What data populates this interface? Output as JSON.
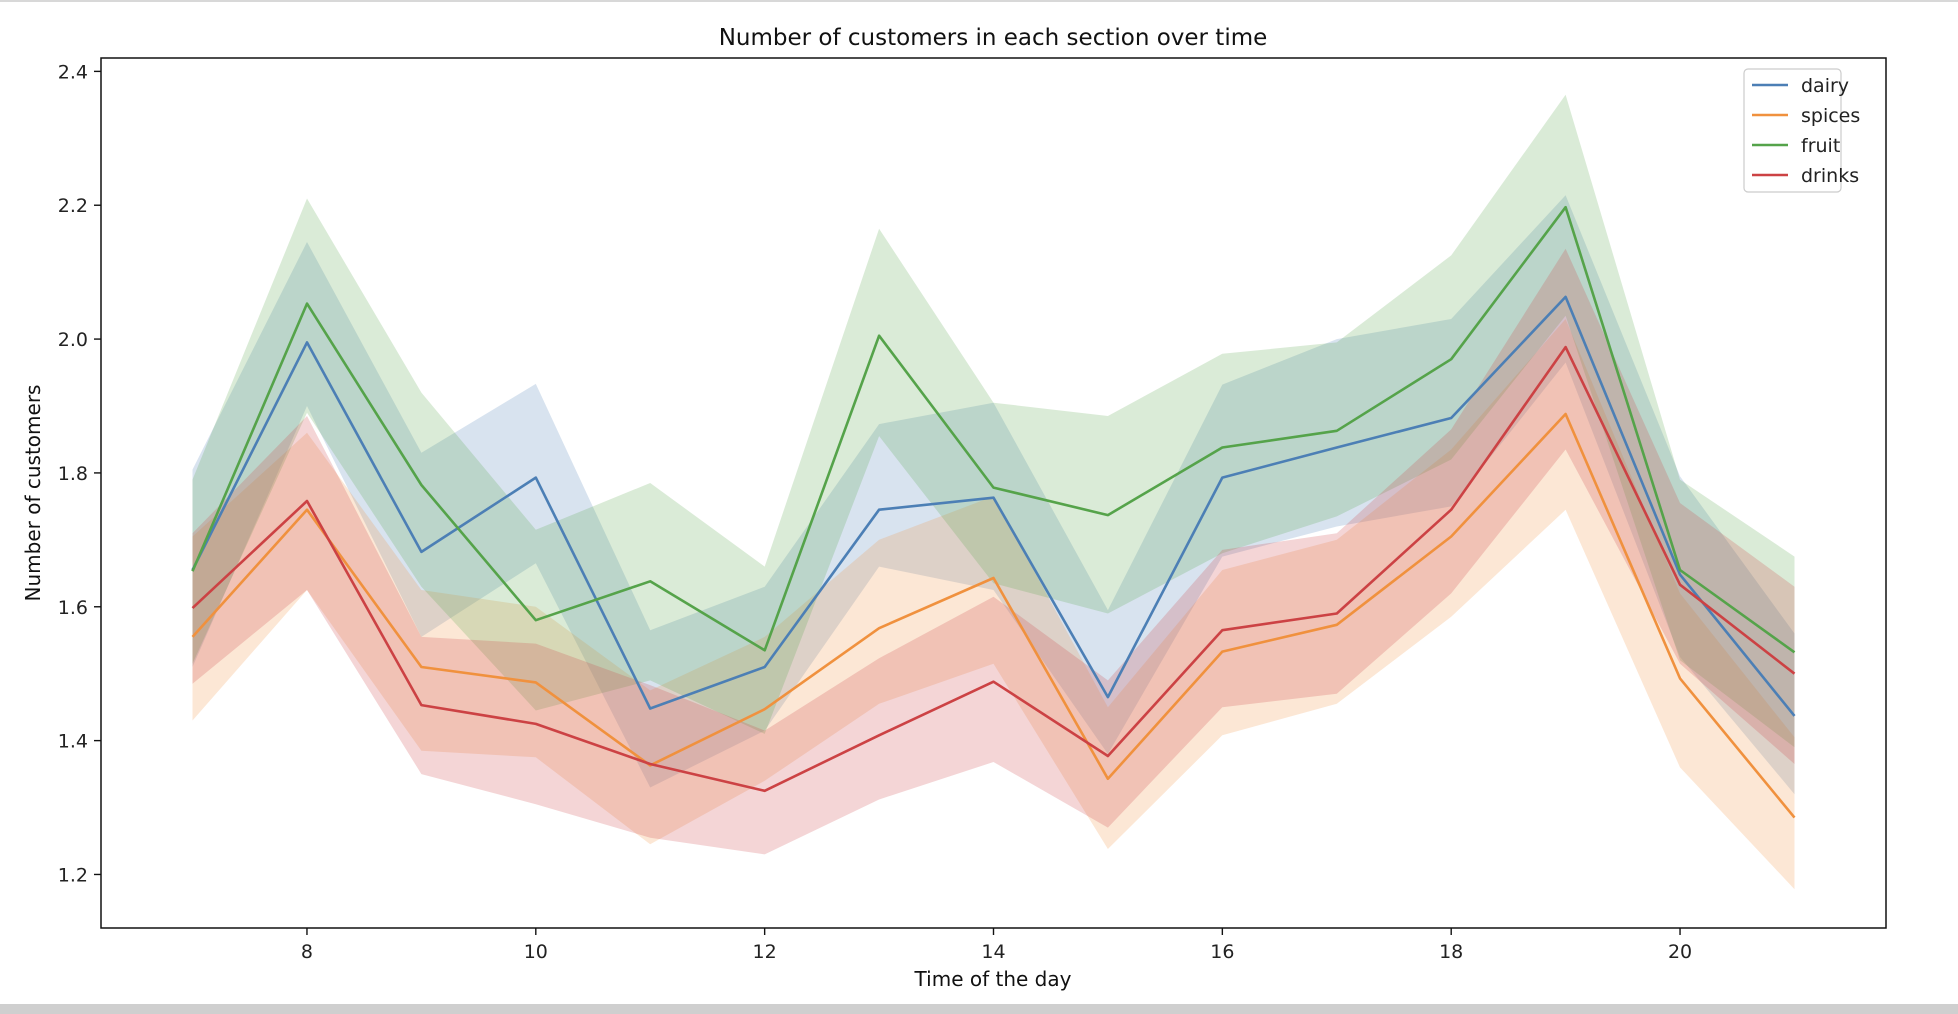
{
  "chart_data": {
    "type": "line",
    "title": "Number of customers in each section over time",
    "xlabel": "Time of the day",
    "ylabel": "Number of customers",
    "xlim": [
      6.2,
      21.8
    ],
    "ylim": [
      1.12,
      2.42
    ],
    "xticks": [
      8,
      10,
      12,
      14,
      16,
      18,
      20
    ],
    "yticks": [
      1.2,
      1.4,
      1.6,
      1.8,
      2.0,
      2.2,
      2.4
    ],
    "ytick_labels": [
      "1.2",
      "1.4",
      "1.6",
      "1.8",
      "2.0",
      "2.2",
      "2.4"
    ],
    "grid": false,
    "legend_position": "top-right",
    "x": [
      7,
      8,
      9,
      10,
      11,
      12,
      13,
      14,
      15,
      16,
      17,
      18,
      19,
      20,
      21
    ],
    "series": [
      {
        "name": "dairy",
        "color": "#4c7fb5",
        "values": [
          1.655,
          1.995,
          1.682,
          1.793,
          1.448,
          1.51,
          1.745,
          1.763,
          1.465,
          1.793,
          1.838,
          1.882,
          2.063,
          1.648,
          1.437
        ],
        "upper": [
          1.805,
          2.145,
          1.83,
          1.933,
          1.565,
          1.63,
          1.873,
          1.905,
          1.595,
          1.932,
          2.0,
          2.03,
          2.215,
          1.795,
          1.56
        ],
        "lower": [
          1.51,
          1.9,
          1.555,
          1.665,
          1.33,
          1.415,
          1.66,
          1.625,
          1.38,
          1.675,
          1.72,
          1.75,
          1.965,
          1.525,
          1.32
        ]
      },
      {
        "name": "spices",
        "color": "#f0913e",
        "values": [
          1.555,
          1.745,
          1.51,
          1.487,
          1.363,
          1.447,
          1.568,
          1.643,
          1.343,
          1.533,
          1.573,
          1.705,
          1.888,
          1.493,
          1.285
        ],
        "upper": [
          1.705,
          1.86,
          1.625,
          1.6,
          1.475,
          1.555,
          1.7,
          1.765,
          1.45,
          1.655,
          1.7,
          1.835,
          2.03,
          1.62,
          1.405
        ],
        "lower": [
          1.43,
          1.625,
          1.385,
          1.375,
          1.245,
          1.34,
          1.455,
          1.515,
          1.238,
          1.408,
          1.455,
          1.585,
          1.745,
          1.36,
          1.178
        ]
      },
      {
        "name": "fruit",
        "color": "#55a34a",
        "values": [
          1.653,
          2.053,
          1.782,
          1.58,
          1.638,
          1.535,
          2.005,
          1.778,
          1.737,
          1.838,
          1.863,
          1.97,
          2.197,
          1.655,
          1.532
        ],
        "upper": [
          1.79,
          2.21,
          1.92,
          1.715,
          1.785,
          1.66,
          2.165,
          1.905,
          1.885,
          1.978,
          1.995,
          2.125,
          2.365,
          1.79,
          1.675
        ],
        "lower": [
          1.515,
          1.89,
          1.63,
          1.445,
          1.49,
          1.41,
          1.855,
          1.635,
          1.59,
          1.68,
          1.735,
          1.82,
          2.035,
          1.52,
          1.39
        ]
      },
      {
        "name": "drinks",
        "color": "#cc4244",
        "values": [
          1.598,
          1.758,
          1.453,
          1.425,
          1.365,
          1.325,
          1.408,
          1.488,
          1.377,
          1.565,
          1.59,
          1.745,
          1.988,
          1.633,
          1.5
        ],
        "upper": [
          1.71,
          1.885,
          1.555,
          1.545,
          1.483,
          1.415,
          1.523,
          1.615,
          1.49,
          1.685,
          1.71,
          1.865,
          2.135,
          1.755,
          1.63
        ],
        "lower": [
          1.485,
          1.625,
          1.35,
          1.305,
          1.255,
          1.23,
          1.312,
          1.368,
          1.27,
          1.45,
          1.47,
          1.62,
          1.835,
          1.515,
          1.365
        ]
      }
    ]
  }
}
